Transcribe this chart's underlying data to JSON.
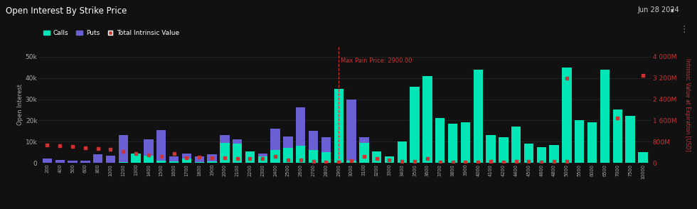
{
  "title": "Open Interest By Strike Price",
  "date_label": "Jun 28 2024",
  "background_color": "#111111",
  "calls_color": "#00e5b5",
  "puts_color": "#6b5fd4",
  "tiv_color": "#cc3333",
  "max_pain_price": 2900,
  "ylabel_left": "Open Interest",
  "ylabel_right": "Intrinsic Value at Expiration [USD]",
  "ylim_left": [
    0,
    55000
  ],
  "ylim_right": [
    0,
    4400000000
  ],
  "yticks_left": [
    0,
    10000,
    20000,
    30000,
    40000,
    50000
  ],
  "ytick_labels_left": [
    "0",
    "10k",
    "20k",
    "30k",
    "40k",
    "50k"
  ],
  "yticks_right": [
    0,
    800000000,
    1600000000,
    2400000000,
    3200000000,
    4000000000
  ],
  "ytick_labels_right": [
    "0",
    "800M",
    "1 600M",
    "2 400M",
    "3 200M",
    "4 000M"
  ],
  "strikes": [
    200,
    400,
    500,
    600,
    800,
    1000,
    1200,
    1300,
    1400,
    1500,
    1600,
    1700,
    1800,
    1900,
    2000,
    2100,
    2200,
    2300,
    2400,
    2500,
    2600,
    2700,
    2800,
    2900,
    3000,
    3100,
    3200,
    3300,
    3400,
    3500,
    3600,
    3700,
    3800,
    3900,
    4000,
    4100,
    4200,
    4400,
    4500,
    4600,
    4800,
    5000,
    5500,
    6000,
    6500,
    7000,
    7500,
    10000
  ],
  "calls": [
    0,
    0,
    0,
    0,
    0,
    0,
    400,
    4500,
    3500,
    1200,
    700,
    2000,
    600,
    900,
    9500,
    9000,
    5500,
    3000,
    6000,
    7000,
    8000,
    6000,
    5000,
    35000,
    1000,
    9500,
    5500,
    3000,
    10000,
    36000,
    41000,
    21000,
    18500,
    19000,
    44000,
    13000,
    12000,
    17000,
    9000,
    7500,
    8500,
    45000,
    20000,
    19000,
    44000,
    25000,
    22000,
    5000
  ],
  "puts": [
    2000,
    1500,
    1000,
    1000,
    4000,
    3500,
    13000,
    3500,
    11000,
    15500,
    3000,
    4500,
    3000,
    4000,
    13000,
    11000,
    3000,
    4500,
    16000,
    12500,
    26000,
    15000,
    12000,
    17500,
    30000,
    12000,
    5000,
    3000,
    7500,
    8000,
    9500,
    8500,
    3000,
    2500,
    2500,
    2500,
    1500,
    1000,
    2000,
    1500,
    1000,
    1500,
    1000,
    1500,
    1500,
    1000,
    1500,
    1000
  ],
  "tiv_right_vals": [
    null,
    null,
    null,
    null,
    null,
    null,
    null,
    null,
    null,
    null,
    null,
    null,
    null,
    null,
    null,
    null,
    null,
    null,
    null,
    null,
    null,
    null,
    null,
    null,
    null,
    null,
    null,
    null,
    null,
    null,
    null,
    null,
    null,
    null,
    null,
    null,
    null,
    null,
    null,
    null,
    null,
    3200000000,
    null,
    null,
    null,
    1700000000,
    null,
    3300000000
  ],
  "tiv_left_vals": [
    8500,
    8000,
    7700,
    7200,
    6700,
    6500,
    5500,
    4500,
    3800,
    3200,
    4500,
    2500,
    2800,
    2500,
    2500,
    2000,
    2000,
    2000,
    3000,
    1500,
    1500,
    700,
    500,
    500,
    1000,
    3000,
    2000,
    1500,
    700,
    700,
    2000,
    500,
    600,
    500,
    600,
    700,
    600,
    700,
    800,
    600,
    700,
    700,
    null,
    null,
    null,
    null,
    null,
    null
  ]
}
